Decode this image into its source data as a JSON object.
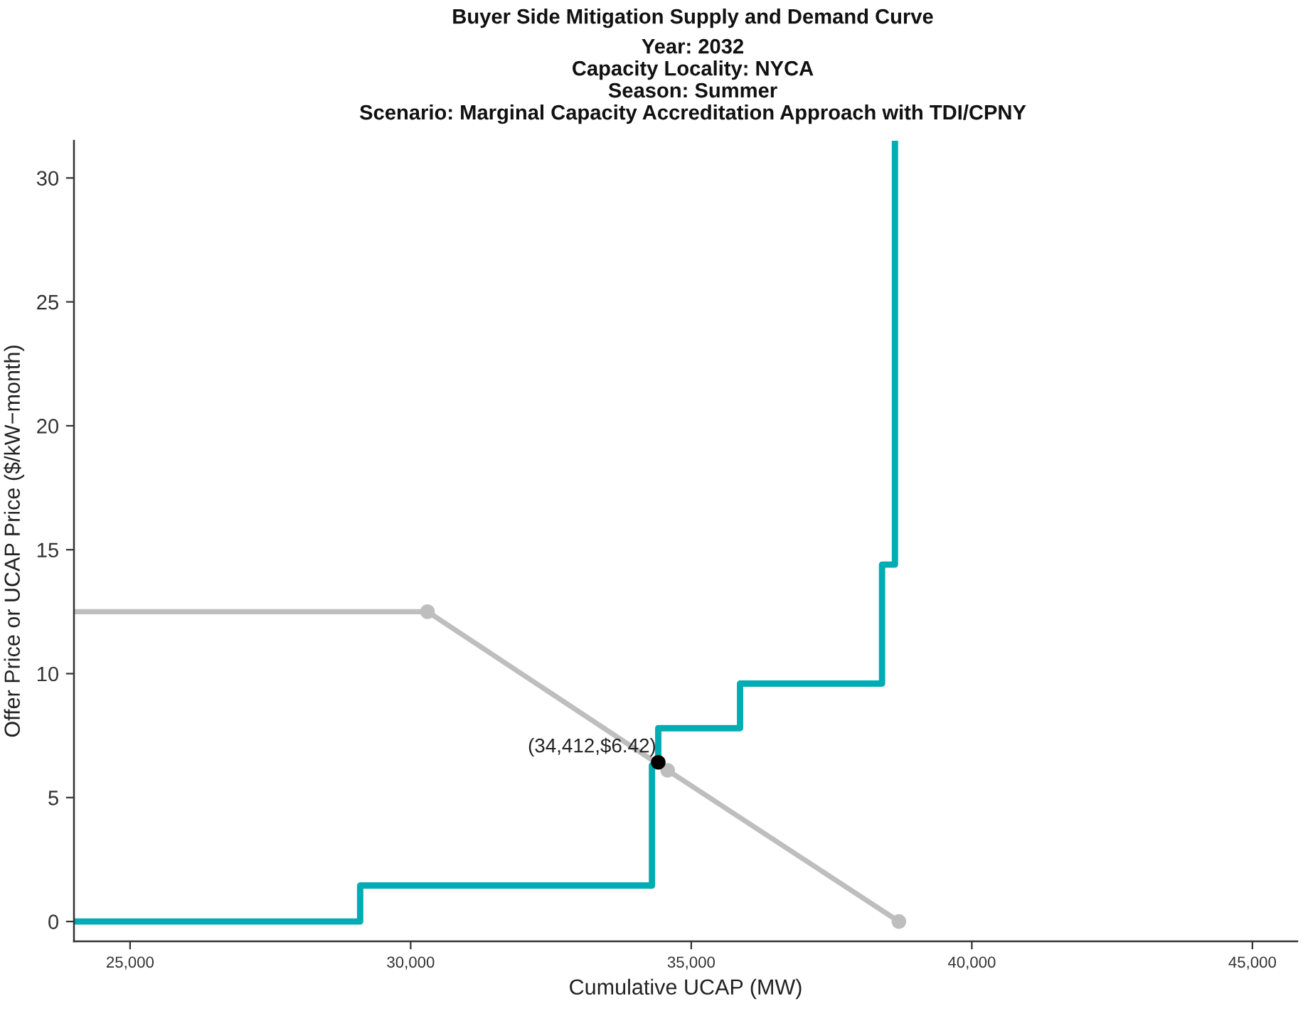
{
  "chart_data": {
    "type": "line",
    "title": "Buyer Side Mitigation Supply and Demand Curve",
    "subtitle": "Year: 2032\nCapacity Locality: NYCA\nSeason: Summer\nScenario: Marginal Capacity Accreditation Approach with TDI/CPNY",
    "xlabel": "Cumulative UCAP (MW)",
    "ylabel": "Offer Price or UCAP Price ($/kW−month)",
    "xlim": [
      24000,
      45800
    ],
    "xticks": [
      {
        "value": 25000,
        "label": "25,000"
      },
      {
        "value": 30000,
        "label": "30,000"
      },
      {
        "value": 35000,
        "label": "35,000"
      },
      {
        "value": 40000,
        "label": "40,000"
      },
      {
        "value": 45000,
        "label": "45,000"
      }
    ],
    "ylim": [
      -0.8,
      31.5
    ],
    "yticks": [
      0,
      5,
      10,
      15,
      20,
      25,
      30
    ],
    "series": [
      {
        "type": "step",
        "color": "#00adb3",
        "x": [
          24000,
          29100,
          34300,
          34412,
          35870,
          38400,
          38630
        ],
        "values": [
          0,
          1.45,
          6.3,
          7.8,
          9.6,
          14.4,
          31.5
        ]
      },
      {
        "color": "#bebebe",
        "x": [
          24000,
          30300,
          34580,
          38700
        ],
        "values": [
          12.5,
          12.5,
          6.1,
          0
        ]
      },
      {
        "type": "scatter",
        "color": "#bebebe",
        "marker": "circle",
        "x": [
          30300,
          34580,
          38700
        ],
        "values": [
          12.5,
          6.1,
          0
        ]
      },
      {
        "type": "scatter",
        "color": "#000000",
        "marker": "circle",
        "x": [
          34412
        ],
        "values": [
          6.42
        ]
      }
    ],
    "annotations": [
      {
        "text": "(34,412,$6.42)",
        "x": 34412,
        "y": 6.42
      }
    ]
  }
}
